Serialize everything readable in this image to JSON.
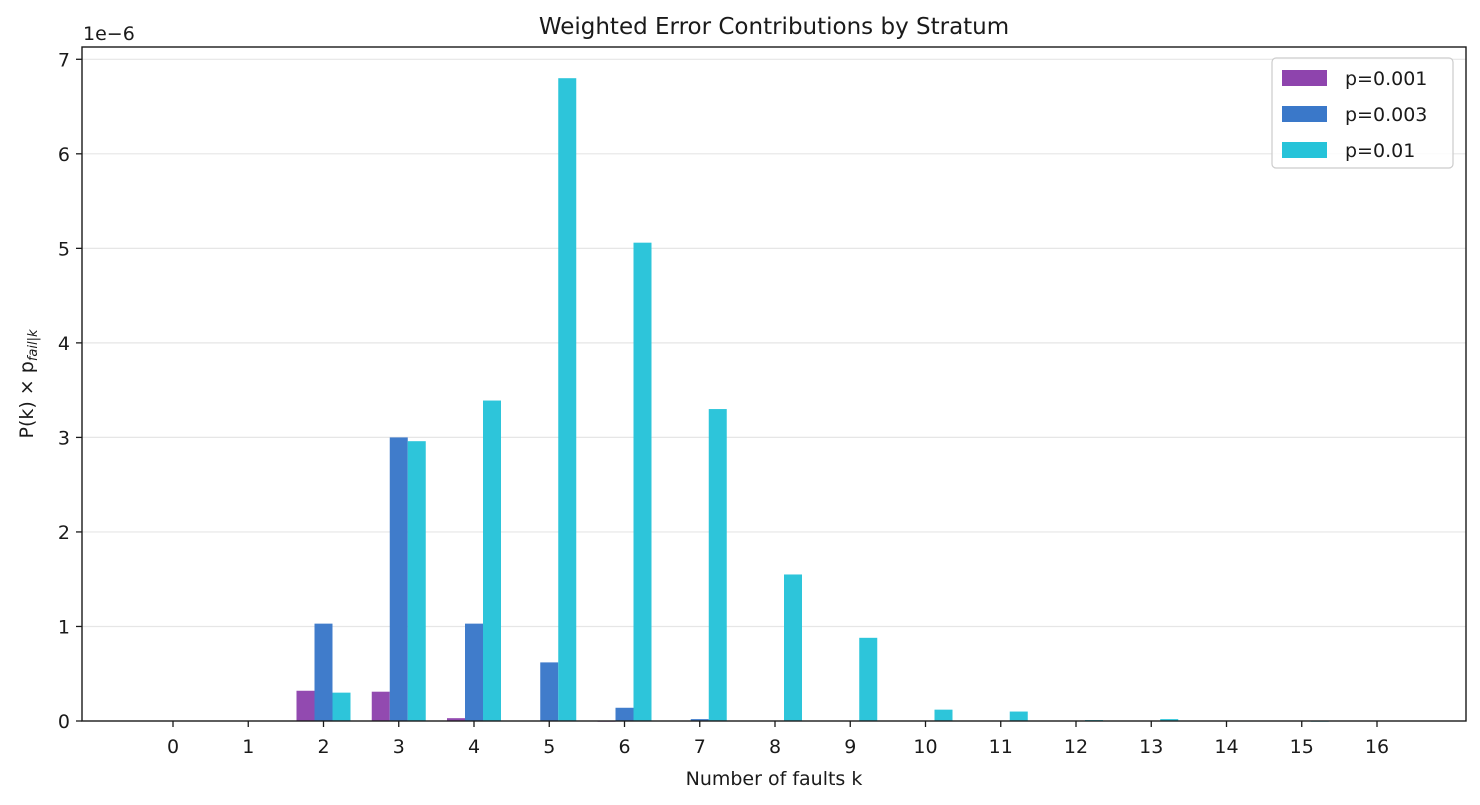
{
  "chart_data": {
    "type": "bar",
    "title": "Weighted Error Contributions by Stratum",
    "xlabel": "Number of faults k",
    "ylabel": {
      "main": "P(k) × p",
      "subscript": "fail|k"
    },
    "y_offset_label": "1e−6",
    "y_scale": 1e-06,
    "categories": [
      "0",
      "1",
      "2",
      "3",
      "4",
      "5",
      "6",
      "7",
      "8",
      "9",
      "10",
      "11",
      "12",
      "13",
      "14",
      "15",
      "16"
    ],
    "yticks": [
      "0",
      "1",
      "2",
      "3",
      "4",
      "5",
      "6",
      "7"
    ],
    "ylim": [
      0,
      7.13
    ],
    "grid": "horizontal",
    "legend_position": "top-right",
    "series": [
      {
        "name": "p=0.001",
        "color": "#8e44ad",
        "values": [
          0,
          0,
          0.32,
          0.31,
          0.03,
          0.005,
          0.001,
          0,
          0,
          0,
          0,
          0,
          0,
          0,
          0,
          0,
          0
        ]
      },
      {
        "name": "p=0.003",
        "color": "#3a78c9",
        "values": [
          0,
          0,
          1.03,
          3.0,
          1.03,
          0.62,
          0.14,
          0.02,
          0.005,
          0,
          0,
          0,
          0,
          0,
          0,
          0,
          0
        ]
      },
      {
        "name": "p=0.01",
        "color": "#26c3d9",
        "values": [
          0,
          0,
          0.3,
          2.96,
          3.39,
          6.8,
          5.06,
          3.3,
          1.55,
          0.88,
          0.12,
          0.1,
          0.01,
          0.02,
          0.003,
          0.001,
          0
        ]
      }
    ]
  }
}
